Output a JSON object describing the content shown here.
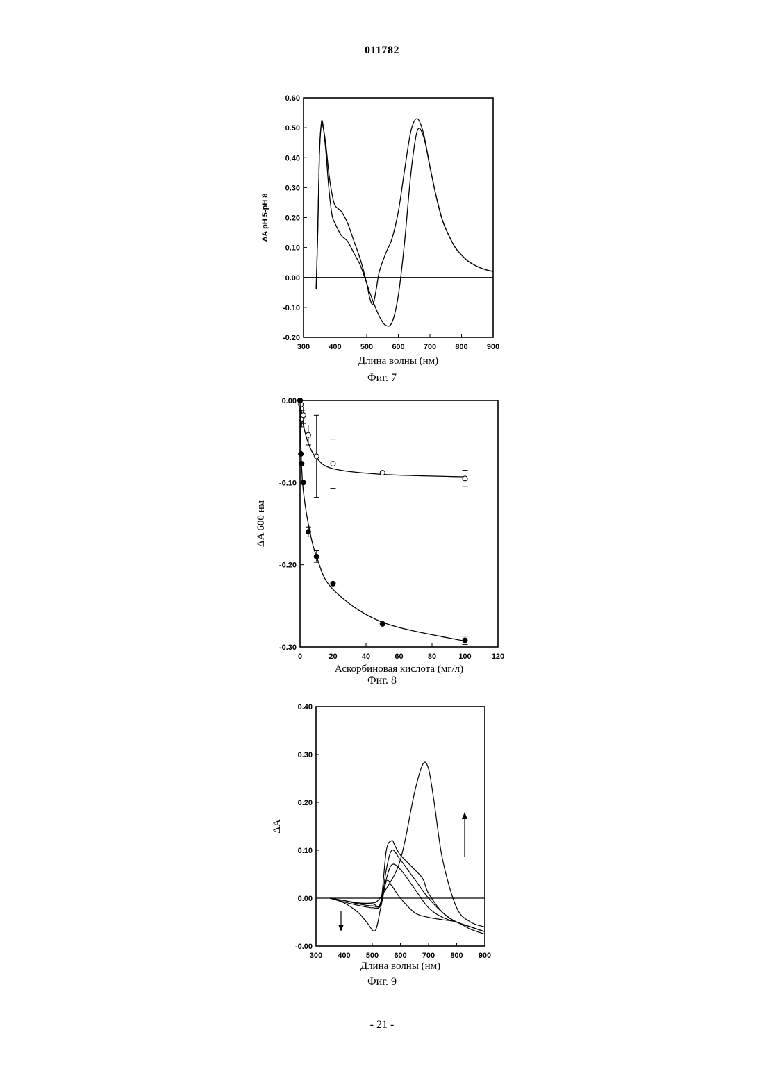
{
  "header": {
    "doc_number": "011782"
  },
  "footer": {
    "page_number": "- 21 -"
  },
  "chart_data": [
    {
      "type": "line",
      "caption": "Фиг. 7",
      "xlabel": "Длина волны (нм)",
      "ylabel": "ΔA pH 5-pH 8",
      "xlim": [
        300,
        900
      ],
      "ylim": [
        -0.2,
        0.6
      ],
      "xticks": [
        "300",
        "400",
        "500",
        "600",
        "700",
        "800",
        "900"
      ],
      "yticks": [
        "-0.20",
        "-0.10",
        "0.00",
        "0.10",
        "0.20",
        "0.30",
        "0.40",
        "0.50",
        "0.60"
      ],
      "series": [
        {
          "x": [
            340,
            345,
            350,
            355,
            360,
            370,
            380,
            390,
            400,
            420,
            440,
            460,
            480,
            500,
            510,
            520,
            530,
            540,
            560,
            580,
            600,
            620,
            640,
            660,
            680,
            700,
            720,
            740,
            760,
            780,
            800,
            820,
            840,
            860,
            880,
            900
          ],
          "y": [
            -0.04,
            0.15,
            0.4,
            0.5,
            0.51,
            0.45,
            0.35,
            0.28,
            0.24,
            0.22,
            0.18,
            0.12,
            0.06,
            -0.02,
            -0.07,
            -0.09,
            -0.04,
            0.02,
            0.08,
            0.13,
            0.22,
            0.36,
            0.49,
            0.53,
            0.48,
            0.37,
            0.27,
            0.19,
            0.14,
            0.1,
            0.075,
            0.055,
            0.042,
            0.032,
            0.025,
            0.02
          ]
        },
        {
          "x": [
            340,
            345,
            350,
            355,
            360,
            370,
            380,
            390,
            400,
            420,
            440,
            460,
            480,
            500,
            520,
            540,
            560,
            580,
            600,
            620,
            640,
            660,
            680,
            700,
            720,
            740,
            760,
            780,
            800,
            820,
            840,
            860,
            880,
            900
          ],
          "y": [
            -0.04,
            0.15,
            0.4,
            0.5,
            0.52,
            0.43,
            0.3,
            0.21,
            0.18,
            0.14,
            0.12,
            0.08,
            0.04,
            -0.02,
            -0.08,
            -0.13,
            -0.16,
            -0.15,
            -0.06,
            0.12,
            0.35,
            0.49,
            0.47,
            0.37,
            0.27,
            0.19,
            0.14,
            0.1,
            0.075,
            0.055,
            0.042,
            0.032,
            0.025,
            0.02
          ]
        }
      ]
    },
    {
      "type": "scatter",
      "caption": "Фиг. 8",
      "xlabel": "Аскорбиновая кислота (мг/л)",
      "ylabel": "ΔA 600  нм",
      "xlim": [
        0,
        120
      ],
      "ylim": [
        -0.3,
        0.0
      ],
      "xticks": [
        "0",
        "20",
        "40",
        "60",
        "80",
        "100",
        "120"
      ],
      "yticks": [
        "-0.30",
        "-0.20",
        "-0.10",
        "0.00"
      ],
      "series": [
        {
          "marker": "open",
          "x": [
            0,
            0.5,
            1,
            2,
            5,
            10,
            20,
            50,
            100
          ],
          "y": [
            0.0,
            -0.005,
            -0.022,
            -0.018,
            -0.042,
            -0.068,
            -0.077,
            -0.088,
            -0.095
          ],
          "err": [
            0.0,
            0.0,
            0.01,
            0.01,
            0.012,
            0.05,
            0.03,
            0.0,
            0.01
          ],
          "fit_y": [
            0.0,
            -0.01,
            -0.018,
            -0.03,
            -0.052,
            -0.07,
            -0.083,
            -0.09,
            -0.093
          ]
        },
        {
          "marker": "filled",
          "x": [
            0,
            0.5,
            1,
            2,
            5,
            10,
            20,
            50,
            100
          ],
          "y": [
            0.0,
            -0.065,
            -0.077,
            -0.1,
            -0.16,
            -0.19,
            -0.223,
            -0.272,
            -0.292
          ],
          "err": [
            0.0,
            0.0,
            0.0,
            0.0,
            0.006,
            0.007,
            0.0,
            0.0,
            0.005
          ],
          "fit_y": [
            0.0,
            -0.05,
            -0.082,
            -0.11,
            -0.15,
            -0.19,
            -0.23,
            -0.27,
            -0.293
          ]
        }
      ]
    },
    {
      "type": "line",
      "caption": "Фиг. 9",
      "xlabel": "Длина волны (нм)",
      "ylabel": "ΔA",
      "xlim": [
        300,
        900
      ],
      "ylim": [
        -0.1,
        0.4
      ],
      "xticks": [
        "300",
        "400",
        "500",
        "600",
        "700",
        "800",
        "900"
      ],
      "yticks": [
        "-0.00",
        "0.00",
        "0.10",
        "0.20",
        "0.30",
        "0.40"
      ],
      "series": [
        {
          "x": [
            350,
            400,
            450,
            500,
            520,
            550,
            580,
            600,
            620,
            650,
            680,
            700,
            720,
            750,
            800,
            850,
            900
          ],
          "y": [
            0.0,
            -0.005,
            -0.01,
            -0.01,
            -0.005,
            0.02,
            0.05,
            0.08,
            0.13,
            0.22,
            0.28,
            0.27,
            0.2,
            0.08,
            -0.02,
            -0.05,
            -0.06
          ]
        },
        {
          "x": [
            350,
            400,
            450,
            500,
            530,
            550,
            570,
            580,
            600,
            650,
            680,
            700,
            750,
            800,
            850,
            900
          ],
          "y": [
            0.0,
            -0.005,
            -0.01,
            -0.012,
            -0.008,
            0.1,
            0.12,
            0.11,
            0.09,
            0.06,
            0.04,
            0.01,
            -0.03,
            -0.05,
            -0.06,
            -0.07
          ]
        },
        {
          "x": [
            350,
            400,
            450,
            500,
            530,
            550,
            570,
            600,
            650,
            700,
            750,
            800,
            850,
            900
          ],
          "y": [
            0.0,
            -0.005,
            -0.012,
            -0.016,
            -0.012,
            0.06,
            0.1,
            0.08,
            0.04,
            0.0,
            -0.03,
            -0.05,
            -0.06,
            -0.07
          ]
        },
        {
          "x": [
            350,
            400,
            450,
            500,
            530,
            550,
            570,
            600,
            650,
            700,
            750,
            800,
            850,
            900
          ],
          "y": [
            0.0,
            -0.008,
            -0.015,
            -0.02,
            -0.015,
            0.04,
            0.07,
            0.06,
            0.02,
            -0.02,
            -0.04,
            -0.05,
            -0.06,
            -0.07
          ]
        },
        {
          "x": [
            350,
            400,
            450,
            480,
            510,
            530,
            550,
            570,
            600,
            650,
            700,
            750,
            800,
            850,
            900
          ],
          "y": [
            0.0,
            -0.01,
            -0.03,
            -0.05,
            -0.068,
            -0.02,
            0.035,
            0.025,
            0.0,
            -0.03,
            -0.04,
            -0.045,
            -0.05,
            -0.065,
            -0.075
          ]
        }
      ]
    }
  ]
}
